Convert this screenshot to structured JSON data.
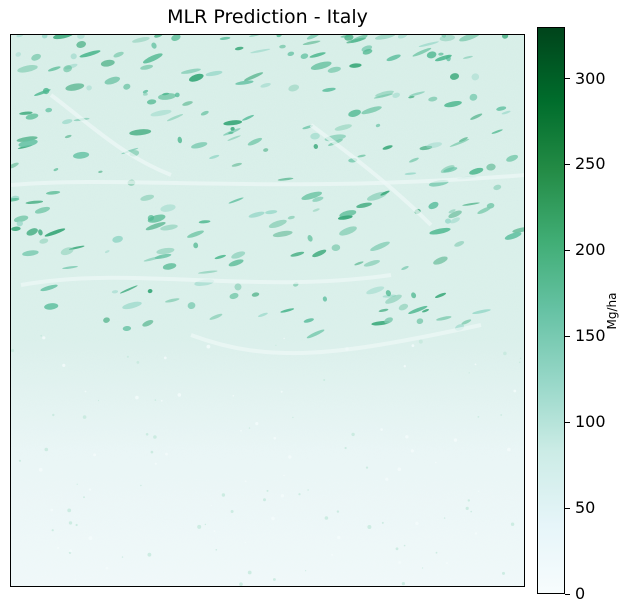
{
  "figure": {
    "title": "MLR Prediction - Italy"
  },
  "colorbar": {
    "label": "Mg/ha",
    "min": 0,
    "max": 330,
    "ticks": [
      {
        "value": 0,
        "label": "0"
      },
      {
        "value": 50,
        "label": "50"
      },
      {
        "value": 100,
        "label": "100"
      },
      {
        "value": 150,
        "label": "150"
      },
      {
        "value": 200,
        "label": "200"
      },
      {
        "value": 250,
        "label": "250"
      },
      {
        "value": 300,
        "label": "300"
      }
    ],
    "colormap": "BuGn",
    "colors": [
      "#f7fcfd",
      "#e5f5f9",
      "#ccece6",
      "#99d8c9",
      "#66c2a4",
      "#41ae76",
      "#238b45",
      "#006d2c",
      "#00441b"
    ]
  },
  "map": {
    "background_color": "#d6eee7",
    "south_color": "#eef8f8",
    "patch_color": "#4fb890"
  }
}
